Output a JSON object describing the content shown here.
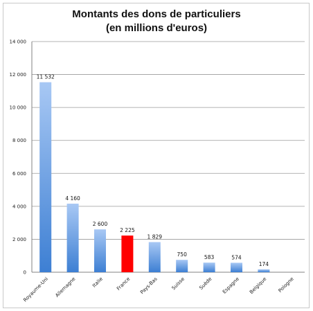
{
  "chart_data": {
    "type": "bar",
    "title": "Montants des dons de particuliers",
    "subtitle": "(en millions d'euros)",
    "xlabel": "",
    "ylabel": "",
    "ylim": [
      0,
      14000
    ],
    "yticks": [
      0,
      2000,
      4000,
      6000,
      8000,
      10000,
      12000,
      14000
    ],
    "ytick_labels": [
      "0",
      "2 000",
      "4 000",
      "6 000",
      "8 000",
      "10 000",
      "12 000",
      "14 000"
    ],
    "grid": true,
    "categories": [
      "Royaume-Uni",
      "Allemagne",
      "Italie",
      "France",
      "Pays-Bas",
      "Suisse",
      "Suède",
      "Espagne",
      "Belgique",
      "Pologne"
    ],
    "values": [
      11532,
      4160,
      2600,
      2225,
      1829,
      750,
      583,
      574,
      174,
      null
    ],
    "value_labels": [
      "11 532",
      "4 160",
      "2 600",
      "2 225",
      "1 829",
      "750",
      "583",
      "574",
      "174",
      ""
    ],
    "colors": {
      "default_top": "#a8c8f4",
      "default_bottom": "#3d7fd3",
      "highlight": "#ff0000",
      "grid": "#9a9a9a",
      "axis": "#808080"
    },
    "highlight_category": "France"
  }
}
